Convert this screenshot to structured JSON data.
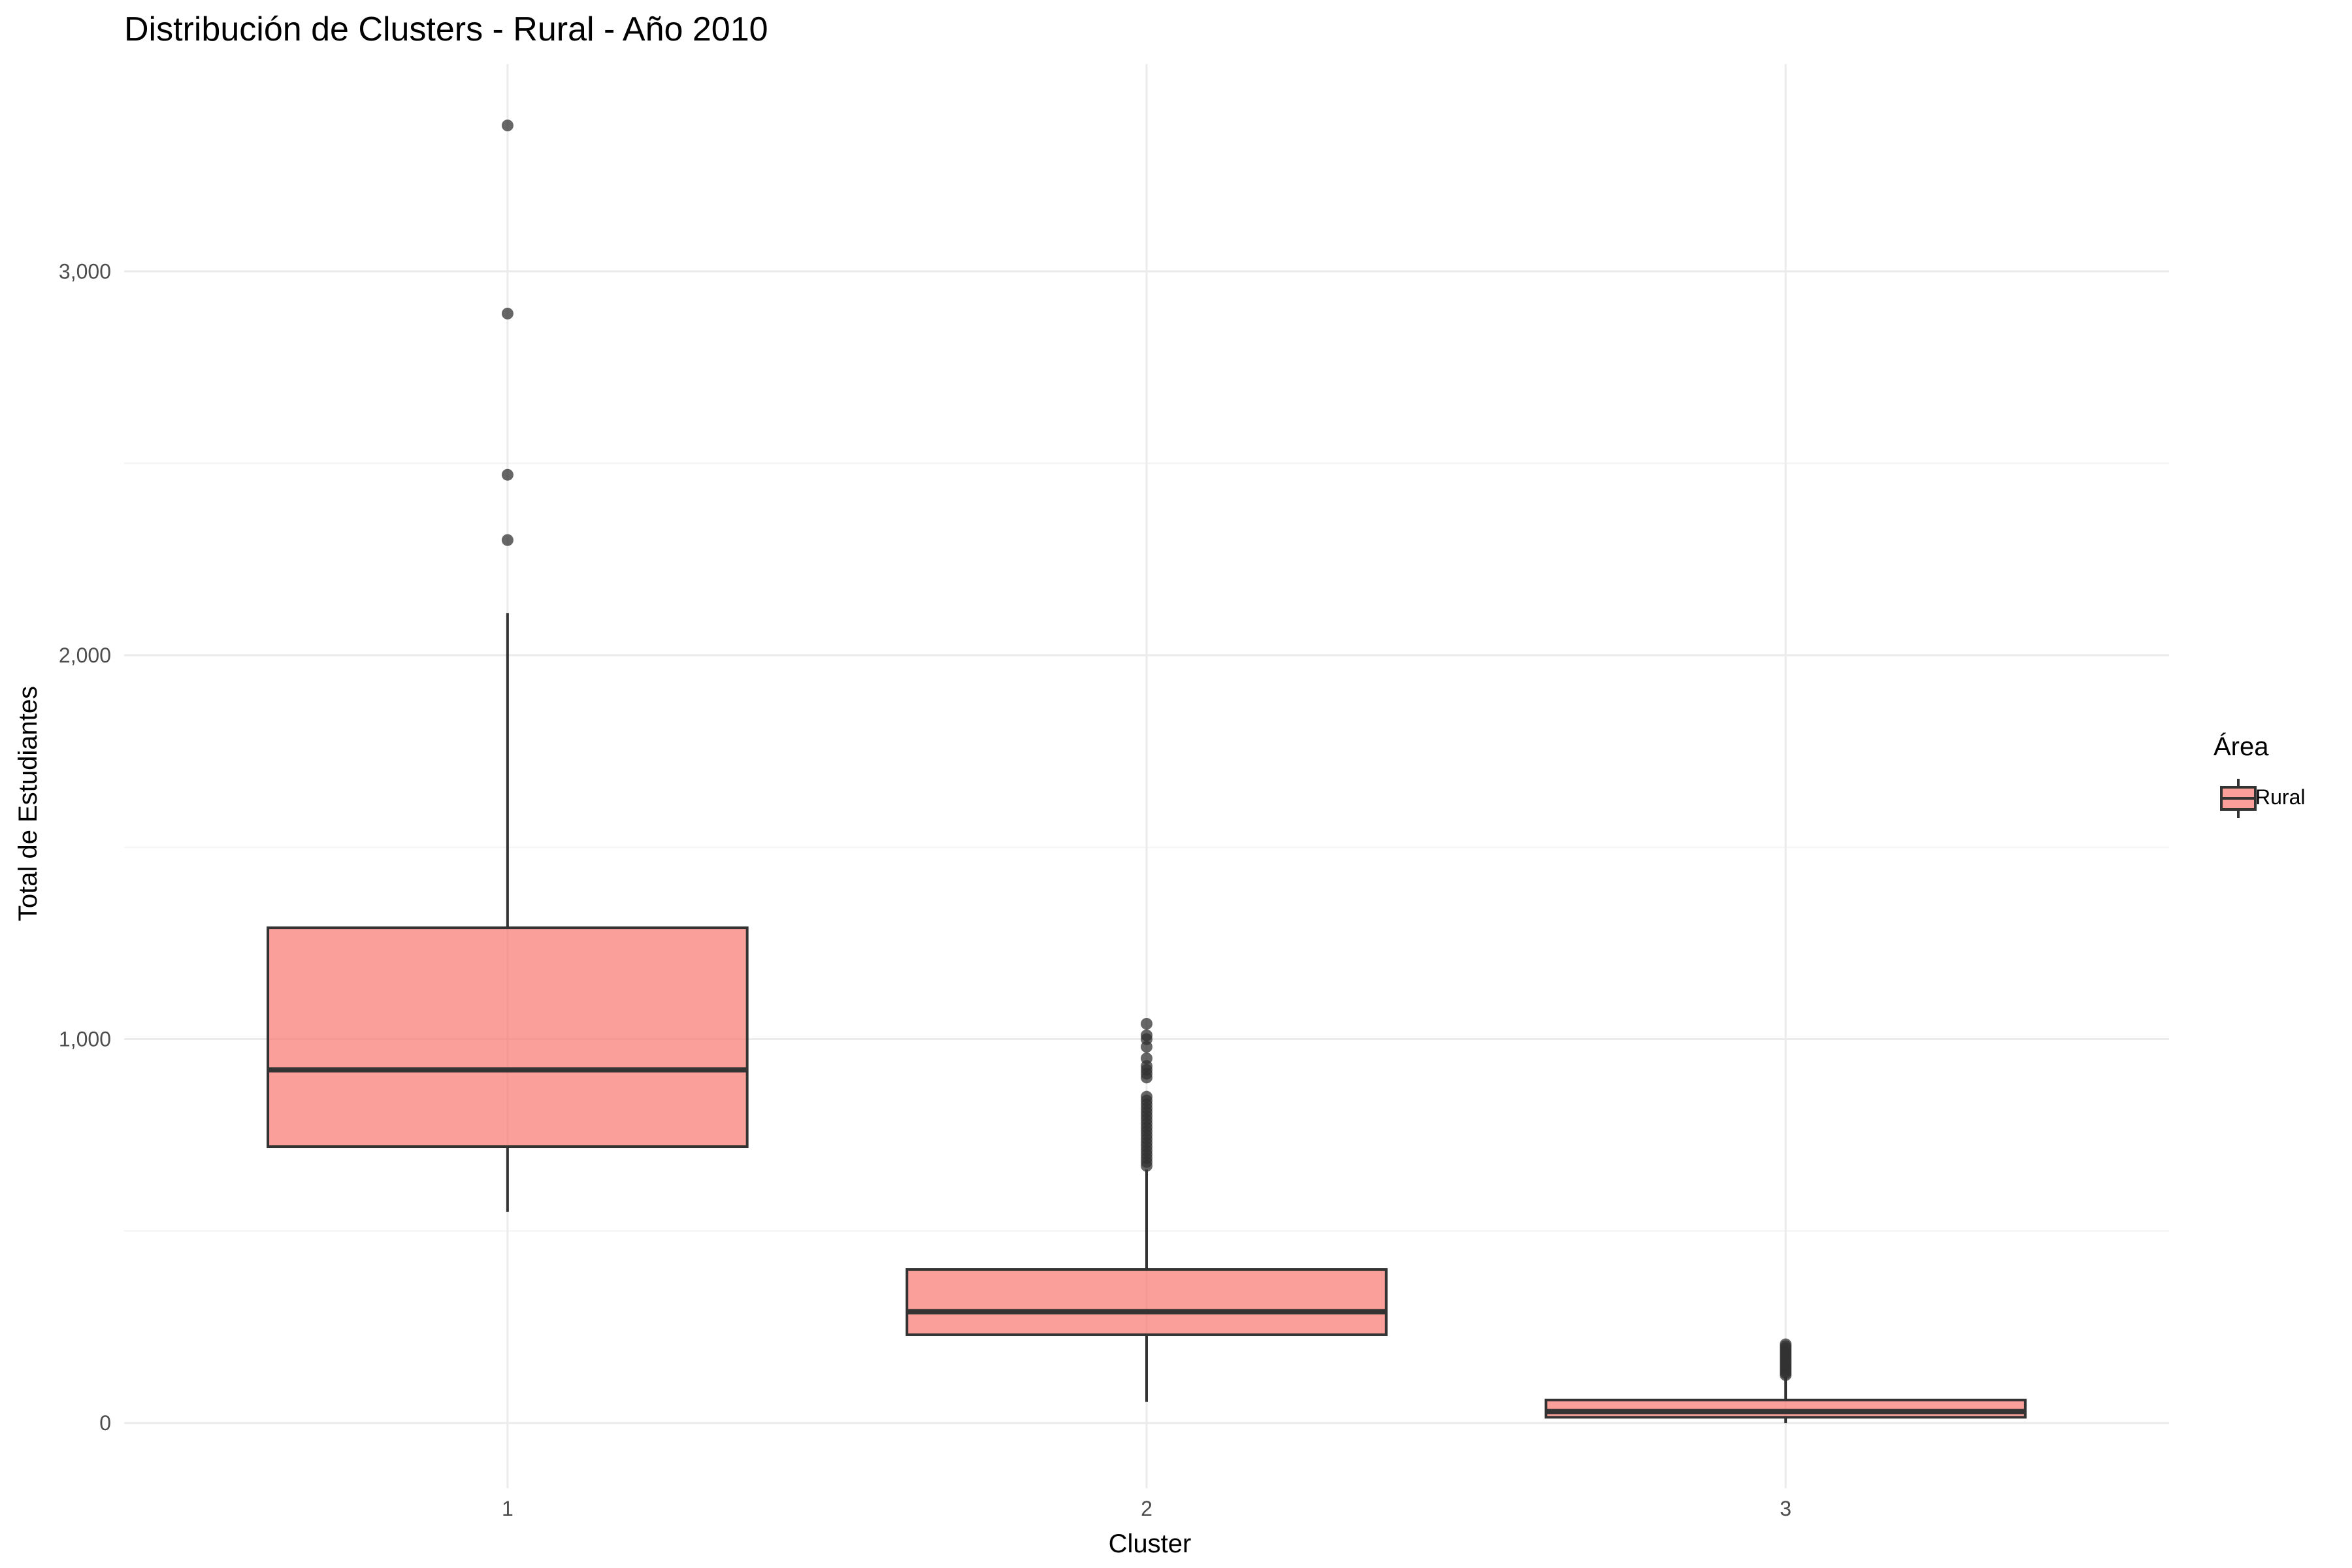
{
  "chart_data": {
    "type": "boxplot",
    "title": "Distribución de Clusters - Rural - Año 2010",
    "xlabel": "Cluster",
    "ylabel": "Total de Estudiantes",
    "categories": [
      "1",
      "2",
      "3"
    ],
    "ylim": [
      -170,
      3540
    ],
    "yticks": [
      0,
      1000,
      2000,
      3000
    ],
    "ytick_labels": [
      "0",
      "1,000",
      "2,000",
      "3,000"
    ],
    "grid": true,
    "legend": {
      "title": "Área",
      "entries": [
        "Rural"
      ],
      "position": "right"
    },
    "fill_color": "#F8766D",
    "fill_opacity": 0.7,
    "line_color": "#333333",
    "outlier_color": "#333333",
    "series": [
      {
        "name": "Rural",
        "boxes": [
          {
            "category": "1",
            "whisker_low": 550,
            "q1": 720,
            "median": 920,
            "q3": 1290,
            "whisker_high": 2110,
            "outliers": [
              2300,
              2470,
              2890,
              3380
            ]
          },
          {
            "category": "2",
            "whisker_low": 55,
            "q1": 230,
            "median": 290,
            "q3": 400,
            "whisker_high": 660,
            "outliers": [
              670,
              680,
              690,
              700,
              710,
              720,
              730,
              740,
              750,
              760,
              770,
              780,
              790,
              800,
              810,
              820,
              830,
              840,
              850,
              900,
              910,
              920,
              930,
              950,
              980,
              1000,
              1010,
              1040
            ]
          },
          {
            "category": "3",
            "whisker_low": 0,
            "q1": 15,
            "median": 30,
            "q3": 60,
            "whisker_high": 120,
            "outliers": [
              125,
              130,
              135,
              140,
              145,
              150,
              155,
              160,
              165,
              170,
              175,
              180,
              185,
              190,
              195,
              200,
              205
            ]
          }
        ]
      }
    ]
  }
}
